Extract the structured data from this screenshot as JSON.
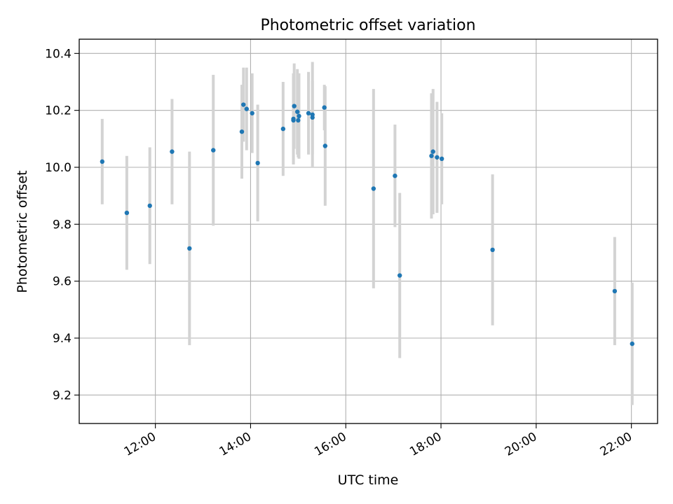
{
  "chart_data": {
    "type": "scatter",
    "title": "Photometric offset variation",
    "xlabel": "UTC time",
    "ylabel": "Photometric offset",
    "xlim": [
      "10:24",
      "22:33"
    ],
    "ylim": [
      9.1,
      10.45
    ],
    "x_ticks": [
      "12:00",
      "14:00",
      "16:00",
      "18:00",
      "20:00",
      "22:00"
    ],
    "y_ticks": [
      9.2,
      9.4,
      9.6,
      9.8,
      10.0,
      10.2,
      10.4
    ],
    "y_tick_labels": [
      "9.2",
      "9.4",
      "9.6",
      "9.8",
      "10.0",
      "10.2",
      "10.4"
    ],
    "grid": true,
    "colors": {
      "points": "#1f77b4",
      "errorbars": "#d3d3d3",
      "grid": "#b0b0b0"
    },
    "series": [
      {
        "points": [
          {
            "x": "10:53",
            "y": 10.02,
            "yerr": 0.15
          },
          {
            "x": "11:24",
            "y": 9.84,
            "yerr": 0.2
          },
          {
            "x": "11:53",
            "y": 9.865,
            "yerr": 0.205
          },
          {
            "x": "12:21",
            "y": 10.055,
            "yerr": 0.185
          },
          {
            "x": "12:43",
            "y": 9.715,
            "yerr": 0.34
          },
          {
            "x": "13:13",
            "y": 10.06,
            "yerr": 0.265
          },
          {
            "x": "13:49",
            "y": 10.125,
            "yerr": 0.165
          },
          {
            "x": "13:51",
            "y": 10.22,
            "yerr": 0.13
          },
          {
            "x": "13:55",
            "y": 10.205,
            "yerr": 0.145
          },
          {
            "x": "14:02",
            "y": 10.19,
            "yerr": 0.14
          },
          {
            "x": "14:09",
            "y": 10.015,
            "yerr": 0.205
          },
          {
            "x": "14:41",
            "y": 10.135,
            "yerr": 0.165
          },
          {
            "x": "14:54",
            "y": 10.165,
            "yerr": 0.155
          },
          {
            "x": "14:54",
            "y": 10.17,
            "yerr": 0.16
          },
          {
            "x": "14:55",
            "y": 10.215,
            "yerr": 0.15
          },
          {
            "x": "14:59",
            "y": 10.195,
            "yerr": 0.15
          },
          {
            "x": "15:00",
            "y": 10.165,
            "yerr": 0.13
          },
          {
            "x": "15:01",
            "y": 10.18,
            "yerr": 0.15
          },
          {
            "x": "15:13",
            "y": 10.19,
            "yerr": 0.145
          },
          {
            "x": "15:18",
            "y": 10.175,
            "yerr": 0.13
          },
          {
            "x": "15:18",
            "y": 10.185,
            "yerr": 0.185
          },
          {
            "x": "15:33",
            "y": 10.21,
            "yerr": 0.08
          },
          {
            "x": "15:34",
            "y": 10.075,
            "yerr": 0.21
          },
          {
            "x": "16:35",
            "y": 9.925,
            "yerr": 0.35
          },
          {
            "x": "17:02",
            "y": 9.97,
            "yerr": 0.18
          },
          {
            "x": "17:08",
            "y": 9.62,
            "yerr": 0.29
          },
          {
            "x": "17:48",
            "y": 10.04,
            "yerr": 0.22
          },
          {
            "x": "17:50",
            "y": 10.055,
            "yerr": 0.22
          },
          {
            "x": "17:55",
            "y": 10.035,
            "yerr": 0.195
          },
          {
            "x": "18:01",
            "y": 10.03,
            "yerr": 0.16
          },
          {
            "x": "19:05",
            "y": 9.71,
            "yerr": 0.265
          },
          {
            "x": "21:39",
            "y": 9.565,
            "yerr": 0.19
          },
          {
            "x": "22:01",
            "y": 9.38,
            "yerr": 0.215
          }
        ]
      }
    ]
  }
}
